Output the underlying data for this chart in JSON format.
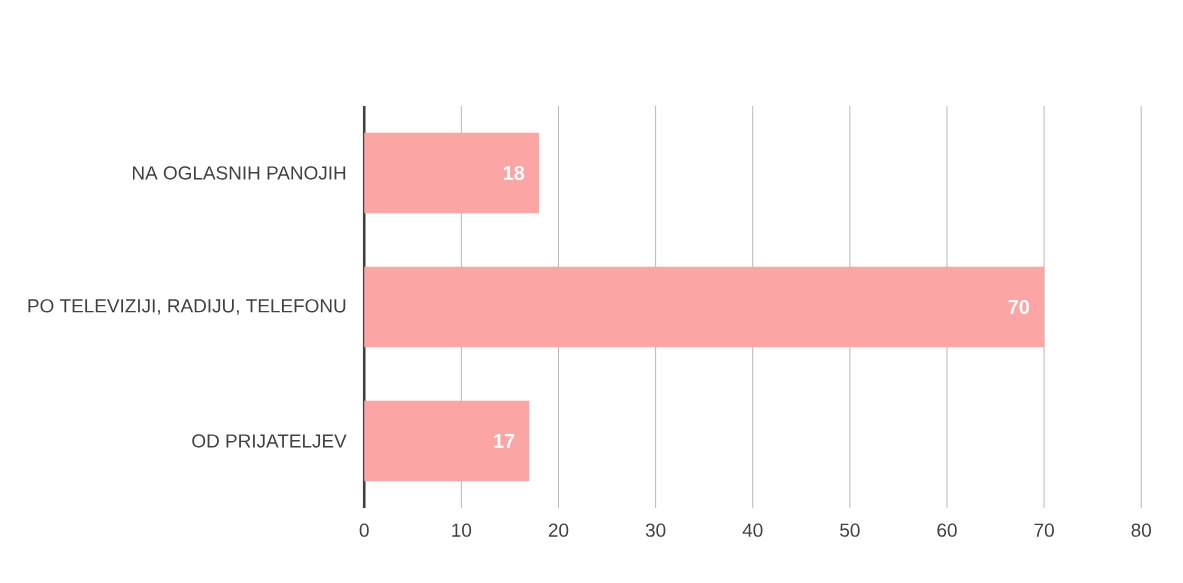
{
  "chart_data": {
    "type": "bar",
    "orientation": "horizontal",
    "categories": [
      "NA OGLASNIH PANOJIH",
      "PO TELEVIZIJI, RADIJU, TELEFONU",
      "OD PRIJATELJEV"
    ],
    "values": [
      18,
      70,
      17
    ],
    "color": "#fca5a5",
    "xlim": [
      0,
      80
    ],
    "xticks": [
      0,
      10,
      20,
      30,
      40,
      50,
      60,
      70,
      80
    ],
    "grid": "x",
    "data_labels": true
  }
}
